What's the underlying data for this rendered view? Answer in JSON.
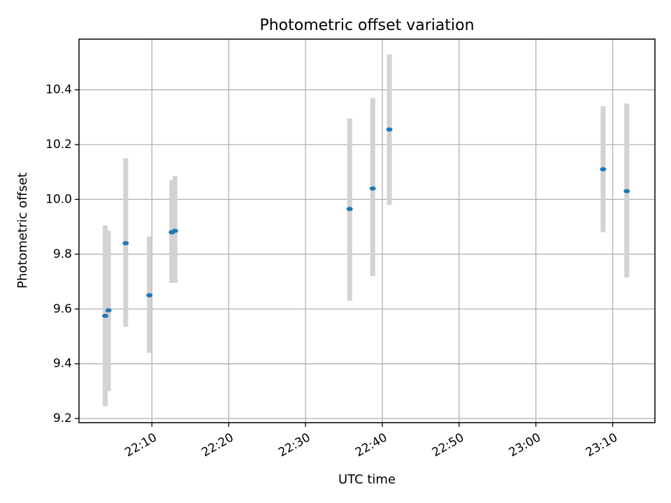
{
  "chart_data": {
    "type": "scatter",
    "title": "Photometric offset variation",
    "xlabel": "UTC time",
    "ylabel": "Photometric offset",
    "x_ticks": [
      "22:10",
      "22:20",
      "22:30",
      "22:40",
      "22:50",
      "23:00",
      "23:10"
    ],
    "y_ticks": [
      "9.2",
      "9.4",
      "9.6",
      "9.8",
      "10.0",
      "10.2",
      "10.4"
    ],
    "xlim": [
      "22:00:30",
      "23:15:30"
    ],
    "ylim": [
      9.185,
      10.585
    ],
    "grid": true,
    "series": [
      {
        "x": [
          "22:03:55",
          "22:04:20",
          "22:06:35",
          "22:09:40",
          "22:12:35",
          "22:13:00",
          "22:35:45",
          "22:38:45",
          "22:40:55",
          "23:08:45",
          "23:11:50"
        ],
        "y": [
          9.575,
          9.595,
          9.84,
          9.65,
          9.88,
          9.885,
          9.965,
          10.04,
          10.255,
          10.11,
          10.03
        ],
        "error_low": [
          9.245,
          9.3,
          9.535,
          9.44,
          9.695,
          9.695,
          9.63,
          9.72,
          9.98,
          9.88,
          9.715
        ],
        "error_high": [
          9.905,
          9.885,
          10.15,
          9.865,
          10.07,
          10.085,
          10.295,
          10.37,
          10.53,
          10.34,
          10.35
        ]
      }
    ],
    "colors": {
      "point": "#1f77b4",
      "errorbar": "#d3d3d3",
      "grid": "#b0b0b0"
    }
  }
}
